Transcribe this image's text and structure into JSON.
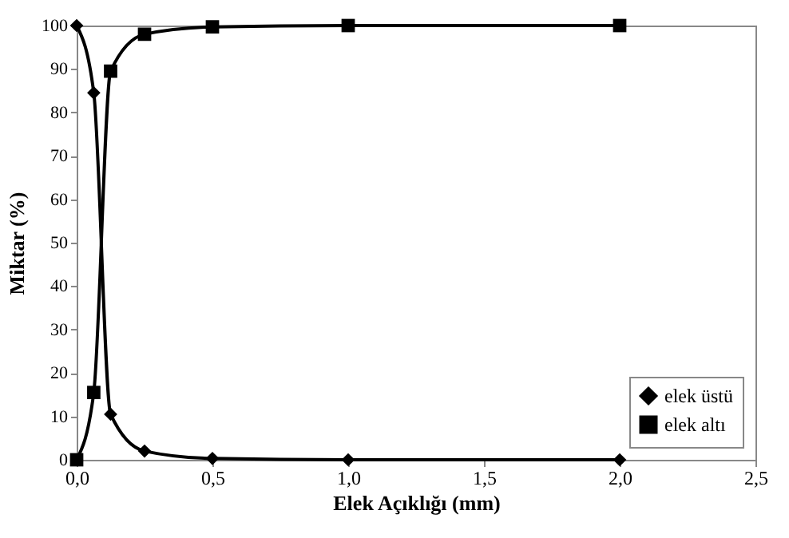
{
  "chart_data": {
    "type": "line",
    "xlabel": "Elek Açıklığı (mm)",
    "ylabel": "Miktar (%)",
    "x": [
      0,
      0.063,
      0.125,
      0.25,
      0.5,
      1,
      2
    ],
    "series": [
      {
        "name": "elek üstü",
        "color": "#000000",
        "marker": "diamond",
        "values": [
          100,
          84.5,
          10.5,
          2,
          0.3,
          0,
          0
        ]
      },
      {
        "name": "elek altı",
        "color": "#000000",
        "marker": "square",
        "values": [
          0,
          15.5,
          89.5,
          98,
          99.7,
          100,
          100
        ]
      }
    ],
    "xlim": [
      0,
      2.5
    ],
    "xticks": [
      {
        "value": 0,
        "label": "0,0"
      },
      {
        "value": 0.5,
        "label": "0,5"
      },
      {
        "value": 1,
        "label": "1,0"
      },
      {
        "value": 1.5,
        "label": "1,5"
      },
      {
        "value": 2,
        "label": "2,0"
      },
      {
        "value": 2.5,
        "label": "2,5"
      }
    ],
    "ylim": [
      0,
      100
    ],
    "yticks": [
      0,
      10,
      20,
      30,
      40,
      50,
      60,
      70,
      80,
      90,
      100
    ],
    "legend": "bottom right",
    "line_style": "solid"
  }
}
